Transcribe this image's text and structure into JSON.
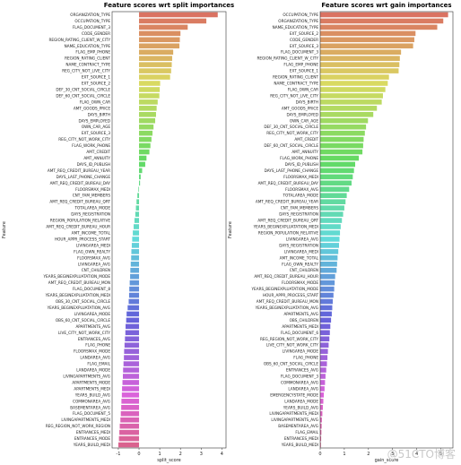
{
  "watermark": "@51CTO博客",
  "chart_data": [
    {
      "type": "bar",
      "orientation": "horizontal",
      "title": "Feature scores wrt split importances",
      "xlabel": "split_score",
      "ylabel": "Feature",
      "xlim": [
        -1.3,
        4.2
      ],
      "xticks": [
        -1,
        0,
        1,
        2,
        3,
        4
      ],
      "palette": "husl",
      "categories": [
        "ORGANIZATION_TYPE",
        "OCCUPATION_TYPE",
        "FLAG_DOCUMENT_3",
        "CODE_GENDER",
        "REGION_RATING_CLIENT_W_CITY",
        "NAME_EDUCATION_TYPE",
        "FLAG_EMP_PHONE",
        "REGION_RATING_CLIENT",
        "NAME_CONTRACT_TYPE",
        "REG_CITY_NOT_LIVE_CITY",
        "EXT_SOURCE_1",
        "EXT_SOURCE_2",
        "DEF_30_CNT_SOCIAL_CIRCLE",
        "DEF_60_CNT_SOCIAL_CIRCLE",
        "FLAG_OWN_CAR",
        "AMT_GOODS_PRICE",
        "DAYS_BIRTH",
        "DAYS_EMPLOYED",
        "OWN_CAR_AGE",
        "EXT_SOURCE_3",
        "REG_CITY_NOT_WORK_CITY",
        "FLAG_WORK_PHONE",
        "AMT_CREDIT",
        "AMT_ANNUITY",
        "DAYS_ID_PUBLISH",
        "AMT_REQ_CREDIT_BUREAU_YEAR",
        "DAYS_LAST_PHONE_CHANGE",
        "AMT_REQ_CREDIT_BUREAU_DAY",
        "FLOORSMAX_MEDI",
        "CNT_FAM_MEMBERS",
        "AMT_REQ_CREDIT_BUREAU_QRT",
        "TOTALAREA_MODE",
        "DAYS_REGISTRATION",
        "REGION_POPULATION_RELATIVE",
        "AMT_REQ_CREDIT_BUREAU_HOUR",
        "AMT_INCOME_TOTAL",
        "HOUR_APPR_PROCESS_START",
        "LIVINGAREA_MEDI",
        "FLAG_OWN_REALTY",
        "FLOORSMAX_AVG",
        "LIVINGAREA_AVG",
        "CNT_CHILDREN",
        "YEARS_BEGINEXPLUATATION_MODE",
        "AMT_REQ_CREDIT_BUREAU_MON",
        "FLAG_DOCUMENT_8",
        "YEARS_BEGINEXPLUATATION_MEDI",
        "OBS_30_CNT_SOCIAL_CIRCLE",
        "YEARS_BEGINEXPLUATATION_AVG",
        "LIVINGAREA_MODE",
        "OBS_60_CNT_SOCIAL_CIRCLE",
        "APARTMENTS_AVG",
        "LIVE_CITY_NOT_WORK_CITY",
        "ENTRANCES_AVG",
        "FLAG_PHONE",
        "FLOORSMAX_MODE",
        "LANDAREA_AVG",
        "FLAG_EMAIL",
        "LANDAREA_MODE",
        "LIVINGAPARTMENTS_AVG",
        "APARTMENTS_MODE",
        "APARTMENTS_MEDI",
        "YEARS_BUILD_AVG",
        "COMMONAREA_AVG",
        "BASEMENTAREA_AVG",
        "FLAG_DOCUMENT_5",
        "LIVINGAPARTMENTS_MEDI",
        "REG_REGION_NOT_WORK_REGION",
        "ENTRANCES_MEDI",
        "ENTRANCES_MODE",
        "YEARS_BUILD_MEDI"
      ],
      "values": [
        3.8,
        3.25,
        2.35,
        2.0,
        1.97,
        1.95,
        1.65,
        1.6,
        1.58,
        1.55,
        1.5,
        1.02,
        1.0,
        0.98,
        0.9,
        0.85,
        0.82,
        0.78,
        0.7,
        0.65,
        0.6,
        0.55,
        0.5,
        0.36,
        0.3,
        0.15,
        0.08,
        0.05,
        -0.03,
        -0.08,
        -0.12,
        -0.15,
        -0.18,
        -0.22,
        -0.26,
        -0.3,
        -0.33,
        -0.35,
        -0.37,
        -0.38,
        -0.4,
        -0.42,
        -0.43,
        -0.45,
        -0.47,
        -0.48,
        -0.5,
        -0.55,
        -0.6,
        -0.62,
        -0.65,
        -0.66,
        -0.68,
        -0.7,
        -0.72,
        -0.73,
        -0.75,
        -0.77,
        -0.78,
        -0.8,
        -0.82,
        -0.83,
        -0.85,
        -0.86,
        -0.88,
        -0.9,
        -0.93,
        -0.95,
        -0.97,
        -1.0
      ]
    },
    {
      "type": "bar",
      "orientation": "horizontal",
      "title": "Feature scores wrt gain importances",
      "xlabel": "gain_score",
      "ylabel": "Feature",
      "xlim": [
        0,
        5.5
      ],
      "xticks": [
        0,
        1,
        2,
        3,
        4,
        5
      ],
      "palette": "husl",
      "categories": [
        "OCCUPATION_TYPE",
        "ORGANIZATION_TYPE",
        "NAME_EDUCATION_TYPE",
        "EXT_SOURCE_2",
        "CODE_GENDER",
        "EXT_SOURCE_3",
        "FLAG_DOCUMENT_3",
        "REGION_RATING_CLIENT_W_CITY",
        "FLAG_EMP_PHONE",
        "EXT_SOURCE_1",
        "REGION_RATING_CLIENT",
        "NAME_CONTRACT_TYPE",
        "FLAG_OWN_CAR",
        "REG_CITY_NOT_LIVE_CITY",
        "DAYS_BIRTH",
        "AMT_GOODS_PRICE",
        "DAYS_EMPLOYED",
        "OWN_CAR_AGE",
        "DEF_30_CNT_SOCIAL_CIRCLE",
        "REG_CITY_NOT_WORK_CITY",
        "AMT_CREDIT",
        "DEF_60_CNT_SOCIAL_CIRCLE",
        "AMT_ANNUITY",
        "FLAG_WORK_PHONE",
        "DAYS_ID_PUBLISH",
        "DAYS_LAST_PHONE_CHANGE",
        "FLOORSMAX_MEDI",
        "AMT_REQ_CREDIT_BUREAU_DAY",
        "FLOORSMAX_AVG",
        "TOTALAREA_MODE",
        "AMT_REQ_CREDIT_BUREAU_YEAR",
        "CNT_FAM_MEMBERS",
        "DAYS_REGISTRATION",
        "AMT_REQ_CREDIT_BUREAU_QRT",
        "YEARS_BEGINEXPLUATATION_MEDI",
        "REGION_POPULATION_RELATIVE",
        "LIVINGAREA_AVG",
        "DAYS_REGISTRATION",
        "LIVINGAREA_MEDI",
        "AMT_INCOME_TOTAL",
        "FLAG_OWN_REALTY",
        "CNT_CHILDREN",
        "AMT_REQ_CREDIT_BUREAU_HOUR",
        "FLOORSMAX_MODE",
        "YEARS_BEGINEXPLUATATION_MODE",
        "HOUR_APPR_PROCESS_START",
        "AMT_REQ_CREDIT_BUREAU_MON",
        "YEARS_BEGINEXPLUATATION_AVG",
        "APARTMENTS_AVG",
        "OBS_CHILDREN",
        "APARTMENTS_MEDI",
        "FLAG_DOCUMENT_6",
        "REG_REGION_NOT_WORK_CITY",
        "LIVE_CITY_NOT_WORK_CITY",
        "LIVINGAREA_MODE",
        "FLAG_PHONE",
        "OBS_60_CNT_SOCIAL_CIRCLE",
        "ENTRANCES_AVG",
        "FLAG_DOCUMENT_3",
        "COMMONAREA_AVG",
        "LANDAREA_AVG",
        "EMERGENCYSTATE_MODE",
        "LANDAREA_MODE",
        "YEARS_BUILD_AVG",
        "LIVINGAPARTMENTS_MEDI",
        "LIVINGAPARTMENTS_AVG",
        "BASEMENTAREA_AVG",
        "FLAG_EMAIL",
        "ENTRANCES_MEDI",
        "YEARS_BUILD_MEDI"
      ],
      "values": [
        5.3,
        5.1,
        4.85,
        3.95,
        3.9,
        3.85,
        3.35,
        3.3,
        3.28,
        3.25,
        2.85,
        2.8,
        2.7,
        2.6,
        2.55,
        2.35,
        2.2,
        1.98,
        1.9,
        1.85,
        1.8,
        1.78,
        1.75,
        1.6,
        1.45,
        1.4,
        1.35,
        1.3,
        1.2,
        1.1,
        1.05,
        1.0,
        0.95,
        0.9,
        0.85,
        0.82,
        0.8,
        0.78,
        0.75,
        0.72,
        0.7,
        0.68,
        0.62,
        0.6,
        0.58,
        0.55,
        0.52,
        0.5,
        0.48,
        0.45,
        0.42,
        0.4,
        0.38,
        0.35,
        0.32,
        0.3,
        0.28,
        0.25,
        0.22,
        0.2,
        0.18,
        0.15,
        0.13,
        0.11,
        0.09,
        0.07,
        0.06,
        0.05,
        0.04,
        0.03
      ]
    }
  ]
}
